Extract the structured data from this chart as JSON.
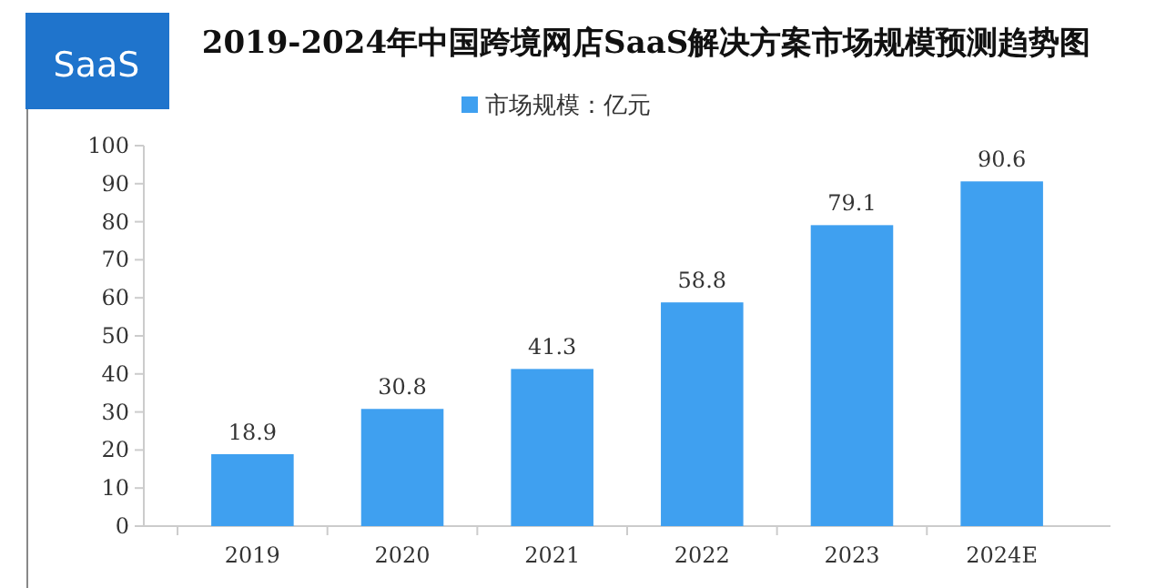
{
  "chart_data": {
    "type": "bar",
    "title": "2019-2024年中国跨境网店SaaS解决方案市场规模预测趋势图",
    "annotations": [
      "SaaS"
    ],
    "categories": [
      "2019",
      "2020",
      "2021",
      "2022",
      "2023",
      "2024E"
    ],
    "series": [
      {
        "name": "市场规模：亿元",
        "color": "#3fa0f0",
        "values": [
          18.9,
          30.8,
          41.3,
          58.8,
          79.1,
          90.6
        ]
      }
    ],
    "ylim": [
      0,
      100
    ],
    "yticks": [
      0,
      10,
      20,
      30,
      40,
      50,
      60,
      70,
      80,
      90,
      100
    ],
    "grid": false,
    "legend": "top",
    "data_labels": true
  }
}
